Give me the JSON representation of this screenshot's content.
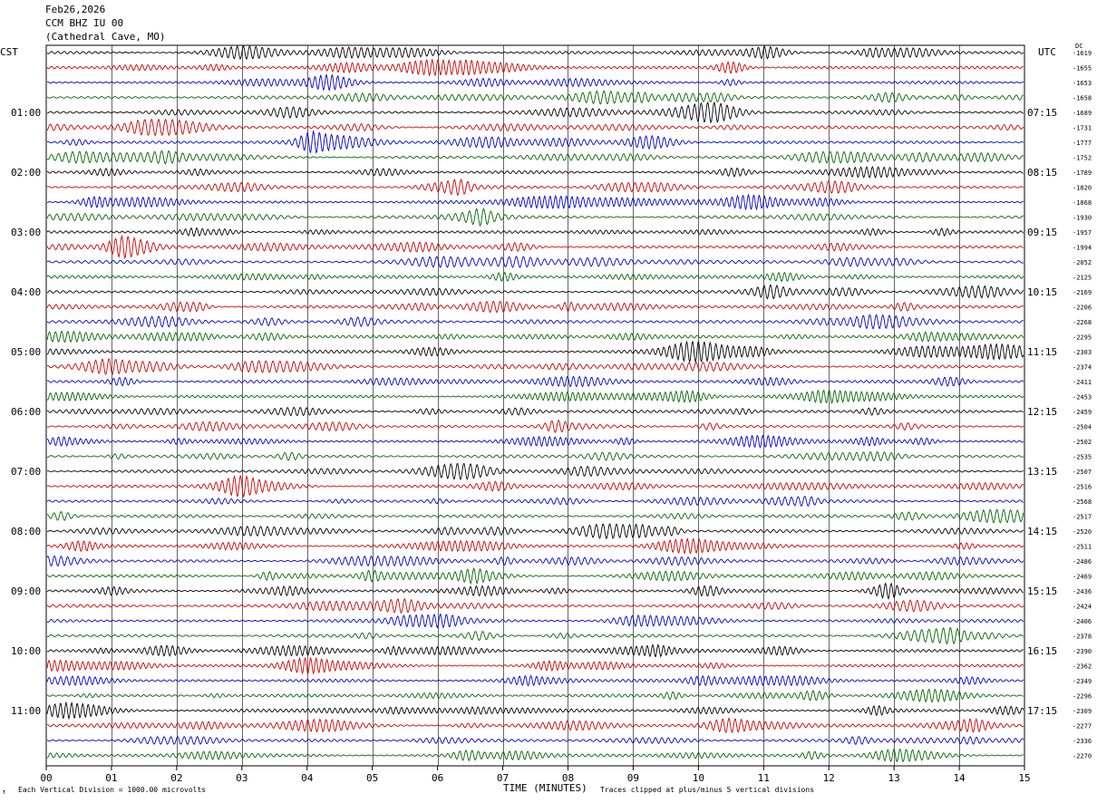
{
  "header": {
    "date": "Feb26,2026",
    "station": "CCM BHZ IU 00",
    "location": "(Cathedral Cave, MO)"
  },
  "left_tz": "CST",
  "right_tz": "UTC",
  "right_col_label": "DC",
  "footer": {
    "scale_note": "Each Vertical Division = 1000.00 microvolts",
    "x_title": "TIME (MINUTES)",
    "clip_note": "Traces clipped at plus/minus 5 vertical divisions",
    "corner_mark": "↑"
  },
  "chart_data": {
    "type": "line",
    "title": "",
    "xlabel": "TIME (MINUTES)",
    "ylabel": "",
    "xlim": [
      0,
      15
    ],
    "x_ticks": [
      "00",
      "01",
      "02",
      "03",
      "04",
      "05",
      "06",
      "07",
      "08",
      "09",
      "10",
      "11",
      "12",
      "13",
      "14",
      "15"
    ],
    "trace_count": 48,
    "trace_colors": [
      "#000000",
      "#cc0000",
      "#0000cc",
      "#006600"
    ],
    "left_hour_labels": [
      "01:00",
      "02:00",
      "03:00",
      "04:00",
      "05:00",
      "06:00",
      "07:00",
      "08:00",
      "09:00",
      "10:00",
      "11:00"
    ],
    "right_hour_labels": [
      "07:15",
      "08:15",
      "09:15",
      "10:15",
      "11:15",
      "12:15",
      "13:15",
      "14:15",
      "15:15",
      "16:15",
      "17:15"
    ],
    "dc_offsets": [
      "-1619",
      "-1655",
      "-1653",
      "-1658",
      "-1689",
      "-1731",
      "-1777",
      "-1752",
      "-1789",
      "-1820",
      "-1868",
      "-1930",
      "-1957",
      "-1994",
      "-2052",
      "-2125",
      "-2169",
      "-2206",
      "-2268",
      "-2295",
      "-2303",
      "-2374",
      "-2411",
      "-2453",
      "-2459",
      "-2504",
      "-2502",
      "-2535",
      "-2507",
      "-2516",
      "-2568",
      "-2517",
      "-2520",
      "-2511",
      "-2486",
      "-2469",
      "-2436",
      "-2424",
      "-2406",
      "-2378",
      "-2390",
      "-2362",
      "-2349",
      "-2296",
      "-2309",
      "-2277",
      "-2336",
      "-2270"
    ]
  }
}
